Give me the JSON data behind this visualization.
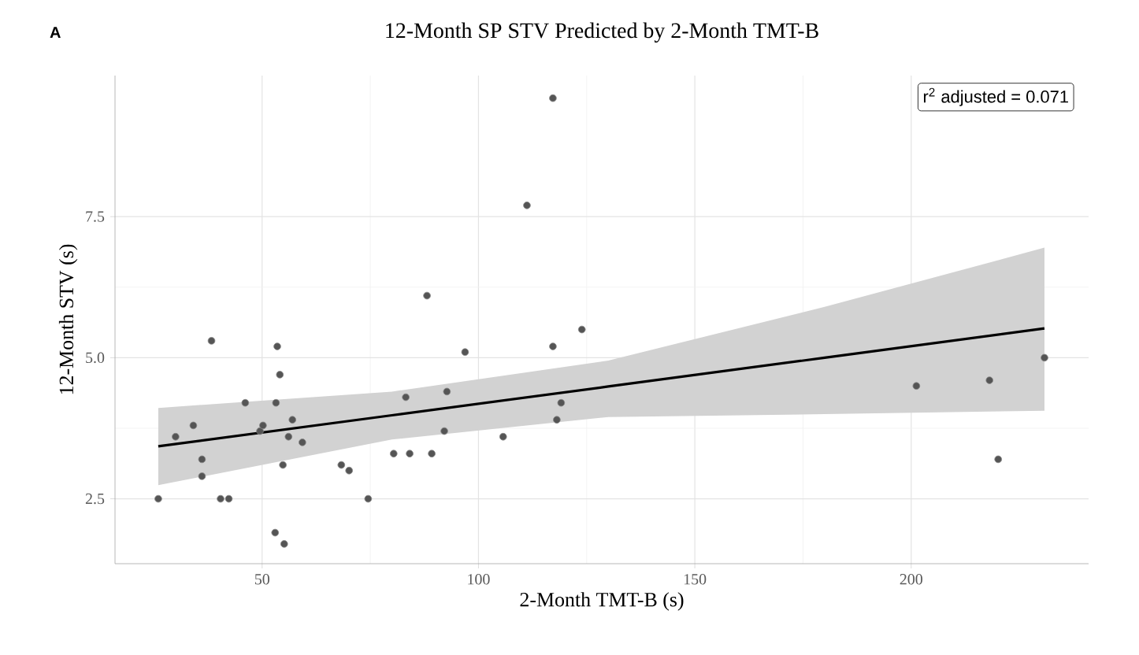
{
  "chart_data": {
    "type": "scatter",
    "title": "12-Month SP STV Predicted by 2-Month TMT-B",
    "xlabel": "2-Month TMT-B (s)",
    "ylabel": "12-Month STV (s)",
    "annotations": [
      "A",
      "r$^{2}$ adjusted = 0.071"
    ],
    "xlim": [
      16,
      241
    ],
    "ylim": [
      1.35,
      10.0
    ],
    "xticks": [
      50,
      100,
      150,
      200
    ],
    "yticks": [
      {
        "value": 2.5,
        "label": "2.5"
      },
      {
        "value": 5,
        "label": "5.0"
      },
      {
        "value": 7.5,
        "label": "7.5"
      }
    ],
    "grid": true,
    "series": [
      {
        "color": "#555555",
        "x": [
          26.0,
          30.0,
          34.1,
          38.3,
          36.1,
          36.1,
          40.4,
          42.3,
          46.1,
          49.5,
          50.2,
          53.5,
          54.1,
          53.2,
          57.0,
          56.1,
          59.3,
          54.8,
          53.0,
          55.1,
          68.3,
          70.1,
          74.5,
          80.4,
          83.2,
          84.1,
          88.1,
          89.2,
          92.7,
          92.1,
          96.9,
          105.7,
          111.2,
          117.2,
          117.2,
          118.1,
          119.1,
          123.9,
          201.2,
          218.1,
          220.1,
          230.8
        ],
        "values": [
          2.5,
          3.6,
          3.8,
          5.3,
          3.2,
          2.9,
          2.5,
          2.5,
          4.2,
          3.7,
          3.8,
          5.2,
          4.7,
          4.2,
          3.9,
          3.6,
          3.5,
          3.1,
          1.9,
          1.7,
          3.1,
          3.0,
          2.5,
          3.3,
          4.3,
          3.3,
          6.1,
          3.3,
          4.4,
          3.7,
          5.1,
          3.6,
          7.7,
          9.6,
          5.2,
          3.9,
          4.2,
          5.5,
          4.5,
          4.6,
          3.2,
          5.0
        ]
      },
      {
        "type": "line",
        "color": "#000000",
        "x": [
          26,
          80,
          130,
          180,
          230.8
        ],
        "values": [
          3.43,
          3.98,
          4.49,
          5.0,
          5.52
        ],
        "lower": [
          2.74,
          3.55,
          3.95,
          4.0,
          4.06
        ],
        "upper": [
          4.11,
          4.4,
          4.95,
          5.9,
          6.95
        ]
      }
    ]
  }
}
